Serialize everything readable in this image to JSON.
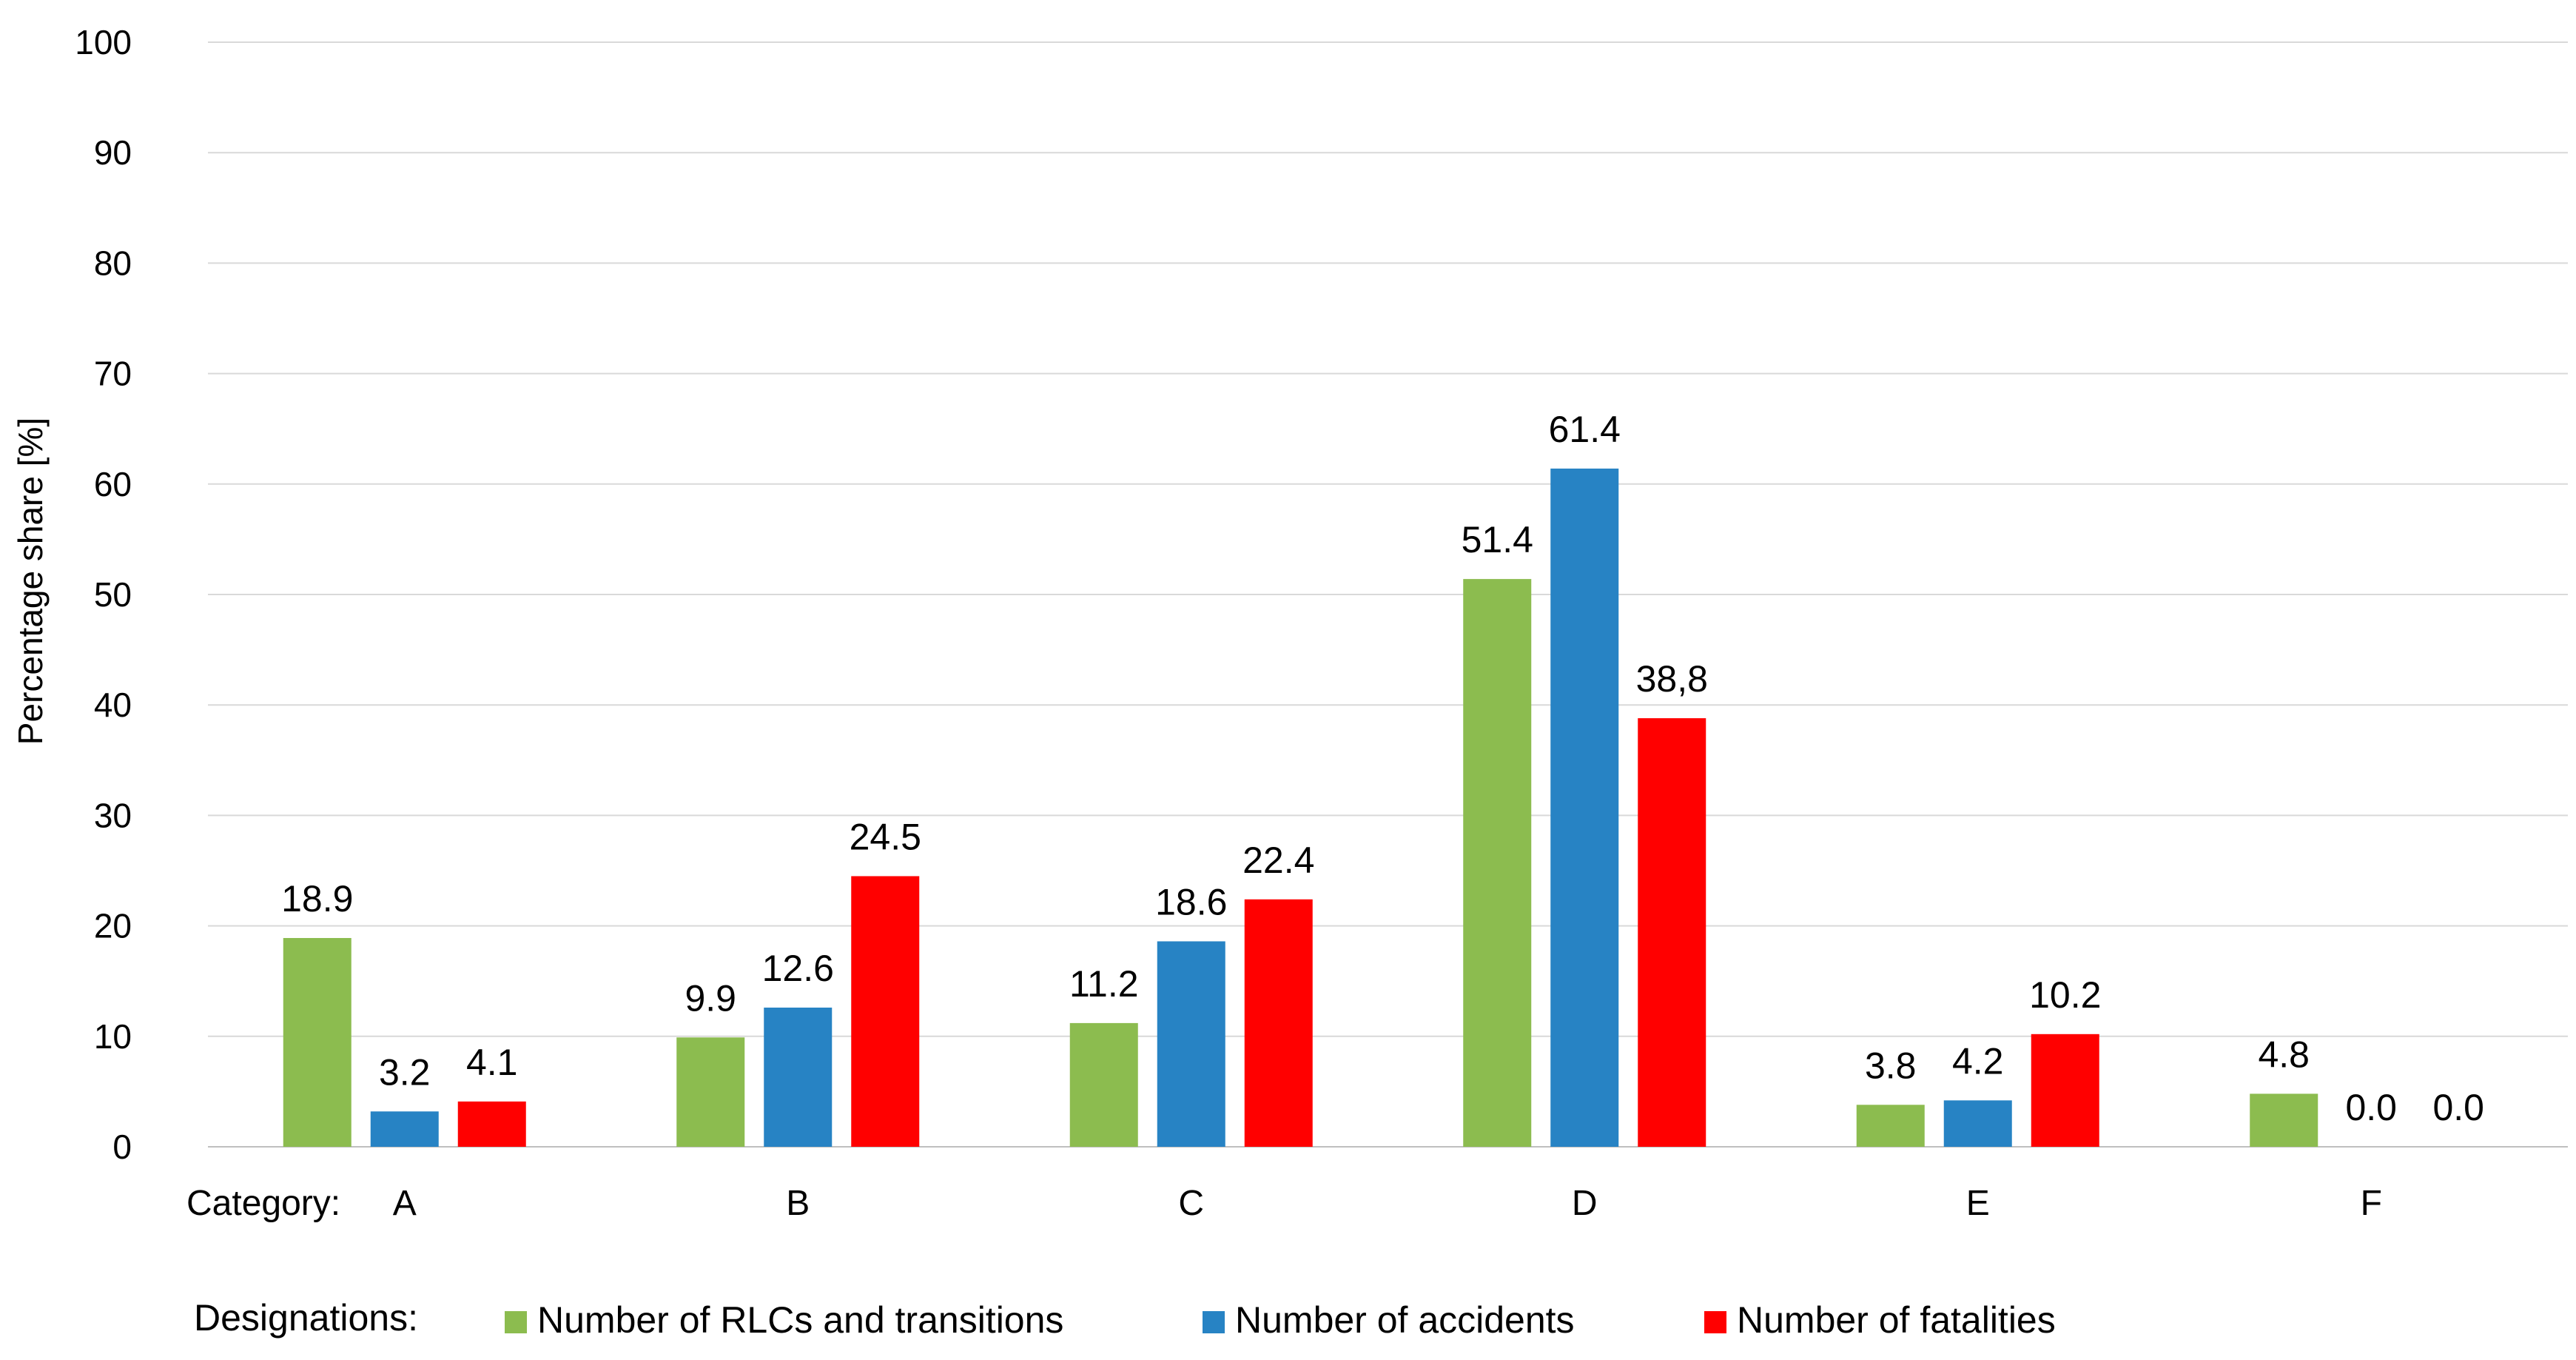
{
  "chart_data": {
    "type": "bar",
    "ylabel": "Percentage share [%]",
    "xlabel": "Category:",
    "ylim": [
      0,
      100
    ],
    "yticks": [
      0,
      10,
      20,
      30,
      40,
      50,
      60,
      70,
      80,
      90,
      100
    ],
    "grid": true,
    "categories": [
      "A",
      "B",
      "C",
      "D",
      "E",
      "F"
    ],
    "series": [
      {
        "name": "Number of RLCs and transitions",
        "color": "#8cbc4f",
        "values": [
          18.9,
          9.9,
          11.2,
          51.4,
          3.8,
          4.8
        ],
        "labels": [
          "18.9",
          "9.9",
          "11.2",
          "51.4",
          "3.8",
          "4.8"
        ]
      },
      {
        "name": "Number of accidents",
        "color": "#2783c4",
        "values": [
          3.2,
          12.6,
          18.6,
          61.4,
          4.2,
          0.0
        ],
        "labels": [
          "3.2",
          "12.6",
          "18.6",
          "61.4",
          "4.2",
          "0.0"
        ]
      },
      {
        "name": "Number of fatalities",
        "color": "#ff0000",
        "values": [
          4.1,
          24.5,
          22.4,
          38.8,
          10.2,
          0.0
        ],
        "labels": [
          "4.1",
          "24.5",
          "22.4",
          "38,8",
          "10.2",
          "0.0"
        ]
      }
    ],
    "legend_title": "Designations:",
    "legend_position": "bottom"
  }
}
